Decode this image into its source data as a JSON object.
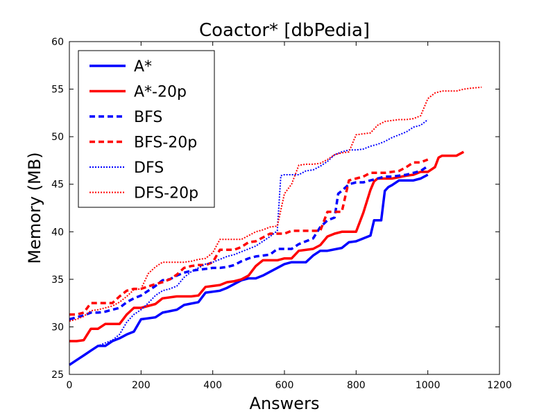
{
  "chart_data": {
    "type": "line",
    "title": "Coactor* [dbPedia]",
    "xlabel": "Answers",
    "ylabel": "Memory (MB)",
    "xlim": [
      0,
      1200
    ],
    "ylim": [
      25,
      60
    ],
    "xticks": [
      "0",
      "200",
      "400",
      "600",
      "800",
      "1000",
      "1200"
    ],
    "yticks": [
      "25",
      "30",
      "35",
      "40",
      "45",
      "50",
      "55",
      "60"
    ],
    "grid": false,
    "legend_position": "top-left",
    "series": [
      {
        "name": "A*",
        "color": "#0000ff",
        "style": "solid",
        "x": [
          0,
          20,
          40,
          60,
          80,
          100,
          120,
          140,
          160,
          180,
          200,
          240,
          260,
          300,
          320,
          360,
          380,
          420,
          440,
          480,
          500,
          520,
          540,
          560,
          580,
          600,
          620,
          640,
          660,
          680,
          700,
          720,
          760,
          780,
          800,
          820,
          840,
          850,
          860,
          870,
          880,
          890,
          900,
          920,
          960,
          980,
          1000
        ],
        "y": [
          26.0,
          26.5,
          27.0,
          27.5,
          28.0,
          28.0,
          28.5,
          28.8,
          29.2,
          29.5,
          30.8,
          31.0,
          31.5,
          31.8,
          32.3,
          32.6,
          33.6,
          33.8,
          34.1,
          34.9,
          35.1,
          35.1,
          35.4,
          35.8,
          36.2,
          36.6,
          36.8,
          36.8,
          36.8,
          37.5,
          38.0,
          38.0,
          38.3,
          38.9,
          39.0,
          39.3,
          39.6,
          41.2,
          41.2,
          41.2,
          44.3,
          44.7,
          44.9,
          45.4,
          45.4,
          45.6,
          46.0
        ]
      },
      {
        "name": "A*-20p",
        "color": "#ff0000",
        "style": "solid",
        "x": [
          0,
          20,
          40,
          60,
          80,
          100,
          120,
          140,
          160,
          180,
          200,
          240,
          260,
          300,
          320,
          340,
          360,
          380,
          420,
          440,
          460,
          480,
          500,
          520,
          540,
          560,
          580,
          600,
          620,
          640,
          680,
          700,
          720,
          740,
          760,
          800,
          820,
          840,
          850,
          860,
          880,
          900,
          940,
          960,
          980,
          1000,
          1020,
          1030,
          1040,
          1060,
          1080,
          1100
        ],
        "y": [
          28.5,
          28.5,
          28.6,
          29.8,
          29.8,
          30.3,
          30.3,
          30.3,
          31.3,
          32.0,
          32.0,
          32.4,
          33.0,
          33.2,
          33.2,
          33.2,
          33.3,
          34.2,
          34.4,
          34.7,
          34.8,
          35.0,
          35.4,
          36.4,
          37.0,
          37.0,
          37.0,
          37.2,
          37.2,
          38.0,
          38.2,
          38.6,
          39.5,
          39.8,
          40.0,
          40.0,
          42.0,
          44.4,
          45.3,
          45.6,
          45.6,
          45.6,
          45.9,
          46.0,
          46.3,
          46.3,
          46.8,
          47.8,
          48.0,
          48.0,
          48.0,
          48.4
        ]
      },
      {
        "name": "BFS",
        "color": "#0000ff",
        "style": "dashed",
        "x": [
          0,
          20,
          40,
          60,
          80,
          100,
          120,
          140,
          160,
          180,
          200,
          220,
          240,
          260,
          280,
          300,
          320,
          340,
          360,
          380,
          400,
          420,
          440,
          460,
          480,
          500,
          520,
          540,
          560,
          580,
          600,
          620,
          640,
          660,
          680,
          700,
          720,
          740,
          750,
          760,
          780,
          800,
          820,
          840,
          860,
          880,
          900,
          940,
          960,
          980,
          1000
        ],
        "y": [
          30.8,
          31.0,
          31.2,
          31.5,
          31.5,
          31.6,
          31.8,
          32.0,
          32.6,
          33.0,
          33.3,
          33.8,
          34.3,
          34.9,
          35.0,
          35.4,
          35.7,
          35.9,
          36.0,
          36.1,
          36.2,
          36.2,
          36.3,
          36.5,
          36.9,
          37.2,
          37.4,
          37.5,
          37.6,
          38.2,
          38.2,
          38.2,
          38.7,
          39.0,
          39.3,
          40.5,
          41.2,
          41.5,
          44.0,
          44.3,
          45.0,
          45.2,
          45.2,
          45.4,
          45.6,
          45.8,
          45.8,
          46.0,
          46.2,
          46.4,
          46.9
        ]
      },
      {
        "name": "BFS-20p",
        "color": "#ff0000",
        "style": "dashed",
        "x": [
          0,
          20,
          40,
          60,
          80,
          100,
          120,
          140,
          160,
          180,
          200,
          240,
          260,
          280,
          300,
          320,
          340,
          360,
          380,
          400,
          420,
          440,
          460,
          480,
          500,
          520,
          540,
          560,
          580,
          600,
          620,
          640,
          680,
          700,
          720,
          740,
          760,
          780,
          800,
          820,
          840,
          860,
          880,
          900,
          920,
          940,
          960,
          980,
          1000
        ],
        "y": [
          31.3,
          31.3,
          31.5,
          32.5,
          32.5,
          32.5,
          32.5,
          33.2,
          33.8,
          34.0,
          34.0,
          34.5,
          34.7,
          35.0,
          35.5,
          36.2,
          36.4,
          36.5,
          36.5,
          36.8,
          38.1,
          38.1,
          38.1,
          38.4,
          38.9,
          39.0,
          39.4,
          39.8,
          39.8,
          39.8,
          40.1,
          40.1,
          40.1,
          40.1,
          42.1,
          42.1,
          42.1,
          45.4,
          45.6,
          45.8,
          46.2,
          46.2,
          46.2,
          46.3,
          46.4,
          46.8,
          47.3,
          47.3,
          47.6
        ]
      },
      {
        "name": "DFS",
        "color": "#0000ff",
        "style": "dotted",
        "x": [
          0,
          20,
          40,
          60,
          80,
          100,
          120,
          140,
          160,
          180,
          200,
          220,
          240,
          260,
          280,
          300,
          320,
          340,
          360,
          380,
          400,
          420,
          440,
          460,
          480,
          500,
          520,
          540,
          560,
          580,
          590,
          600,
          620,
          640,
          660,
          680,
          700,
          720,
          740,
          760,
          780,
          800,
          820,
          840,
          860,
          880,
          900,
          920,
          940,
          960,
          980,
          1000
        ],
        "y": [
          26.0,
          26.5,
          27.0,
          27.5,
          28.0,
          28.3,
          28.6,
          29.2,
          30.5,
          31.3,
          31.8,
          32.5,
          33.3,
          33.8,
          34.0,
          34.3,
          35.2,
          35.8,
          36.2,
          36.6,
          36.8,
          37.1,
          37.4,
          37.6,
          37.9,
          38.2,
          38.5,
          39.0,
          39.5,
          40.1,
          45.9,
          46.0,
          46.0,
          46.0,
          46.4,
          46.5,
          46.9,
          47.4,
          48.1,
          48.4,
          48.6,
          48.6,
          48.7,
          49.0,
          49.2,
          49.5,
          49.9,
          50.2,
          50.5,
          51.0,
          51.2,
          51.8
        ]
      },
      {
        "name": "DFS-20p",
        "color": "#ff0000",
        "style": "dotted",
        "x": [
          0,
          20,
          40,
          60,
          80,
          100,
          120,
          140,
          160,
          180,
          200,
          220,
          240,
          260,
          280,
          300,
          320,
          340,
          360,
          380,
          400,
          420,
          440,
          460,
          480,
          500,
          520,
          540,
          560,
          580,
          600,
          620,
          640,
          660,
          680,
          700,
          720,
          740,
          760,
          780,
          800,
          820,
          840,
          860,
          880,
          900,
          920,
          940,
          960,
          980,
          1000,
          1020,
          1040,
          1060,
          1080,
          1100,
          1120,
          1150
        ],
        "y": [
          30.6,
          30.8,
          31.1,
          31.7,
          31.8,
          32.0,
          32.2,
          32.6,
          33.2,
          33.9,
          34.0,
          35.6,
          36.3,
          36.8,
          36.8,
          36.8,
          36.8,
          36.9,
          37.1,
          37.2,
          37.8,
          39.2,
          39.2,
          39.2,
          39.2,
          39.6,
          40.0,
          40.2,
          40.5,
          40.6,
          44.0,
          45.0,
          47.0,
          47.1,
          47.1,
          47.2,
          47.6,
          48.1,
          48.3,
          48.4,
          50.2,
          50.3,
          50.4,
          51.2,
          51.6,
          51.7,
          51.8,
          51.8,
          51.9,
          52.2,
          54.0,
          54.6,
          54.8,
          54.8,
          54.8,
          55.0,
          55.1,
          55.2
        ]
      }
    ]
  }
}
